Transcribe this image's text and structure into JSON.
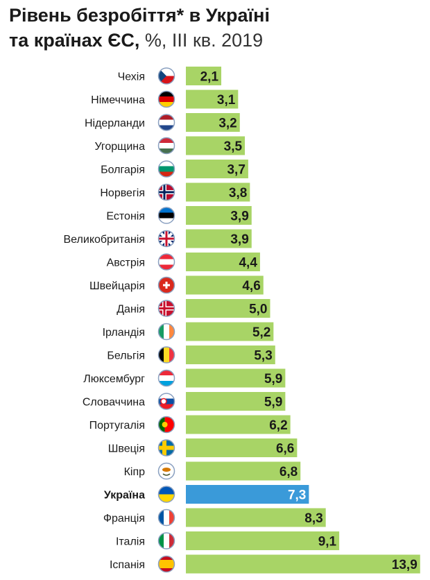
{
  "chart_data": {
    "type": "bar",
    "orientation": "horizontal",
    "title_line1": "Рівень безробіття* в Україні",
    "title_line2_bold": "та країнах ЄС,",
    "title_line2_rest": " %, III кв. 2019",
    "categories": [
      "Чехія",
      "Німеччина",
      "Нідерланди",
      "Угорщина",
      "Болгарія",
      "Норвегія",
      "Естонія",
      "Великобританія",
      "Австрія",
      "Швейцарія",
      "Данія",
      "Ірландія",
      "Бельгія",
      "Люксембург",
      "Словаччина",
      "Португалія",
      "Швеція",
      "Кіпр",
      "Україна",
      "Франція",
      "Італія",
      "Іспанія"
    ],
    "values": [
      2.1,
      3.1,
      3.2,
      3.5,
      3.7,
      3.8,
      3.9,
      3.9,
      4.4,
      4.6,
      5.0,
      5.2,
      5.3,
      5.9,
      5.9,
      6.2,
      6.6,
      6.8,
      7.3,
      8.3,
      9.1,
      13.9
    ],
    "value_labels": [
      "2,1",
      "3,1",
      "3,2",
      "3,5",
      "3,7",
      "3,8",
      "3,9",
      "3,9",
      "4,4",
      "4,6",
      "5,0",
      "5,2",
      "5,3",
      "5,9",
      "5,9",
      "6,2",
      "6,6",
      "6,8",
      "7,3",
      "8,3",
      "9,1",
      "13,9"
    ],
    "highlight": "Україна",
    "flags": [
      "cz",
      "de",
      "nl",
      "hu",
      "bg",
      "no",
      "ee",
      "gb",
      "at",
      "ch",
      "dk",
      "ie",
      "be",
      "lu",
      "sk",
      "pt",
      "se",
      "cy",
      "ua",
      "fr",
      "it",
      "es"
    ],
    "colors": {
      "bar": "#a8d466",
      "highlight": "#3a9ad9",
      "label": "#1a1a1a",
      "highlight_label": "#ffffff"
    },
    "xlim": [
      0,
      14
    ]
  }
}
